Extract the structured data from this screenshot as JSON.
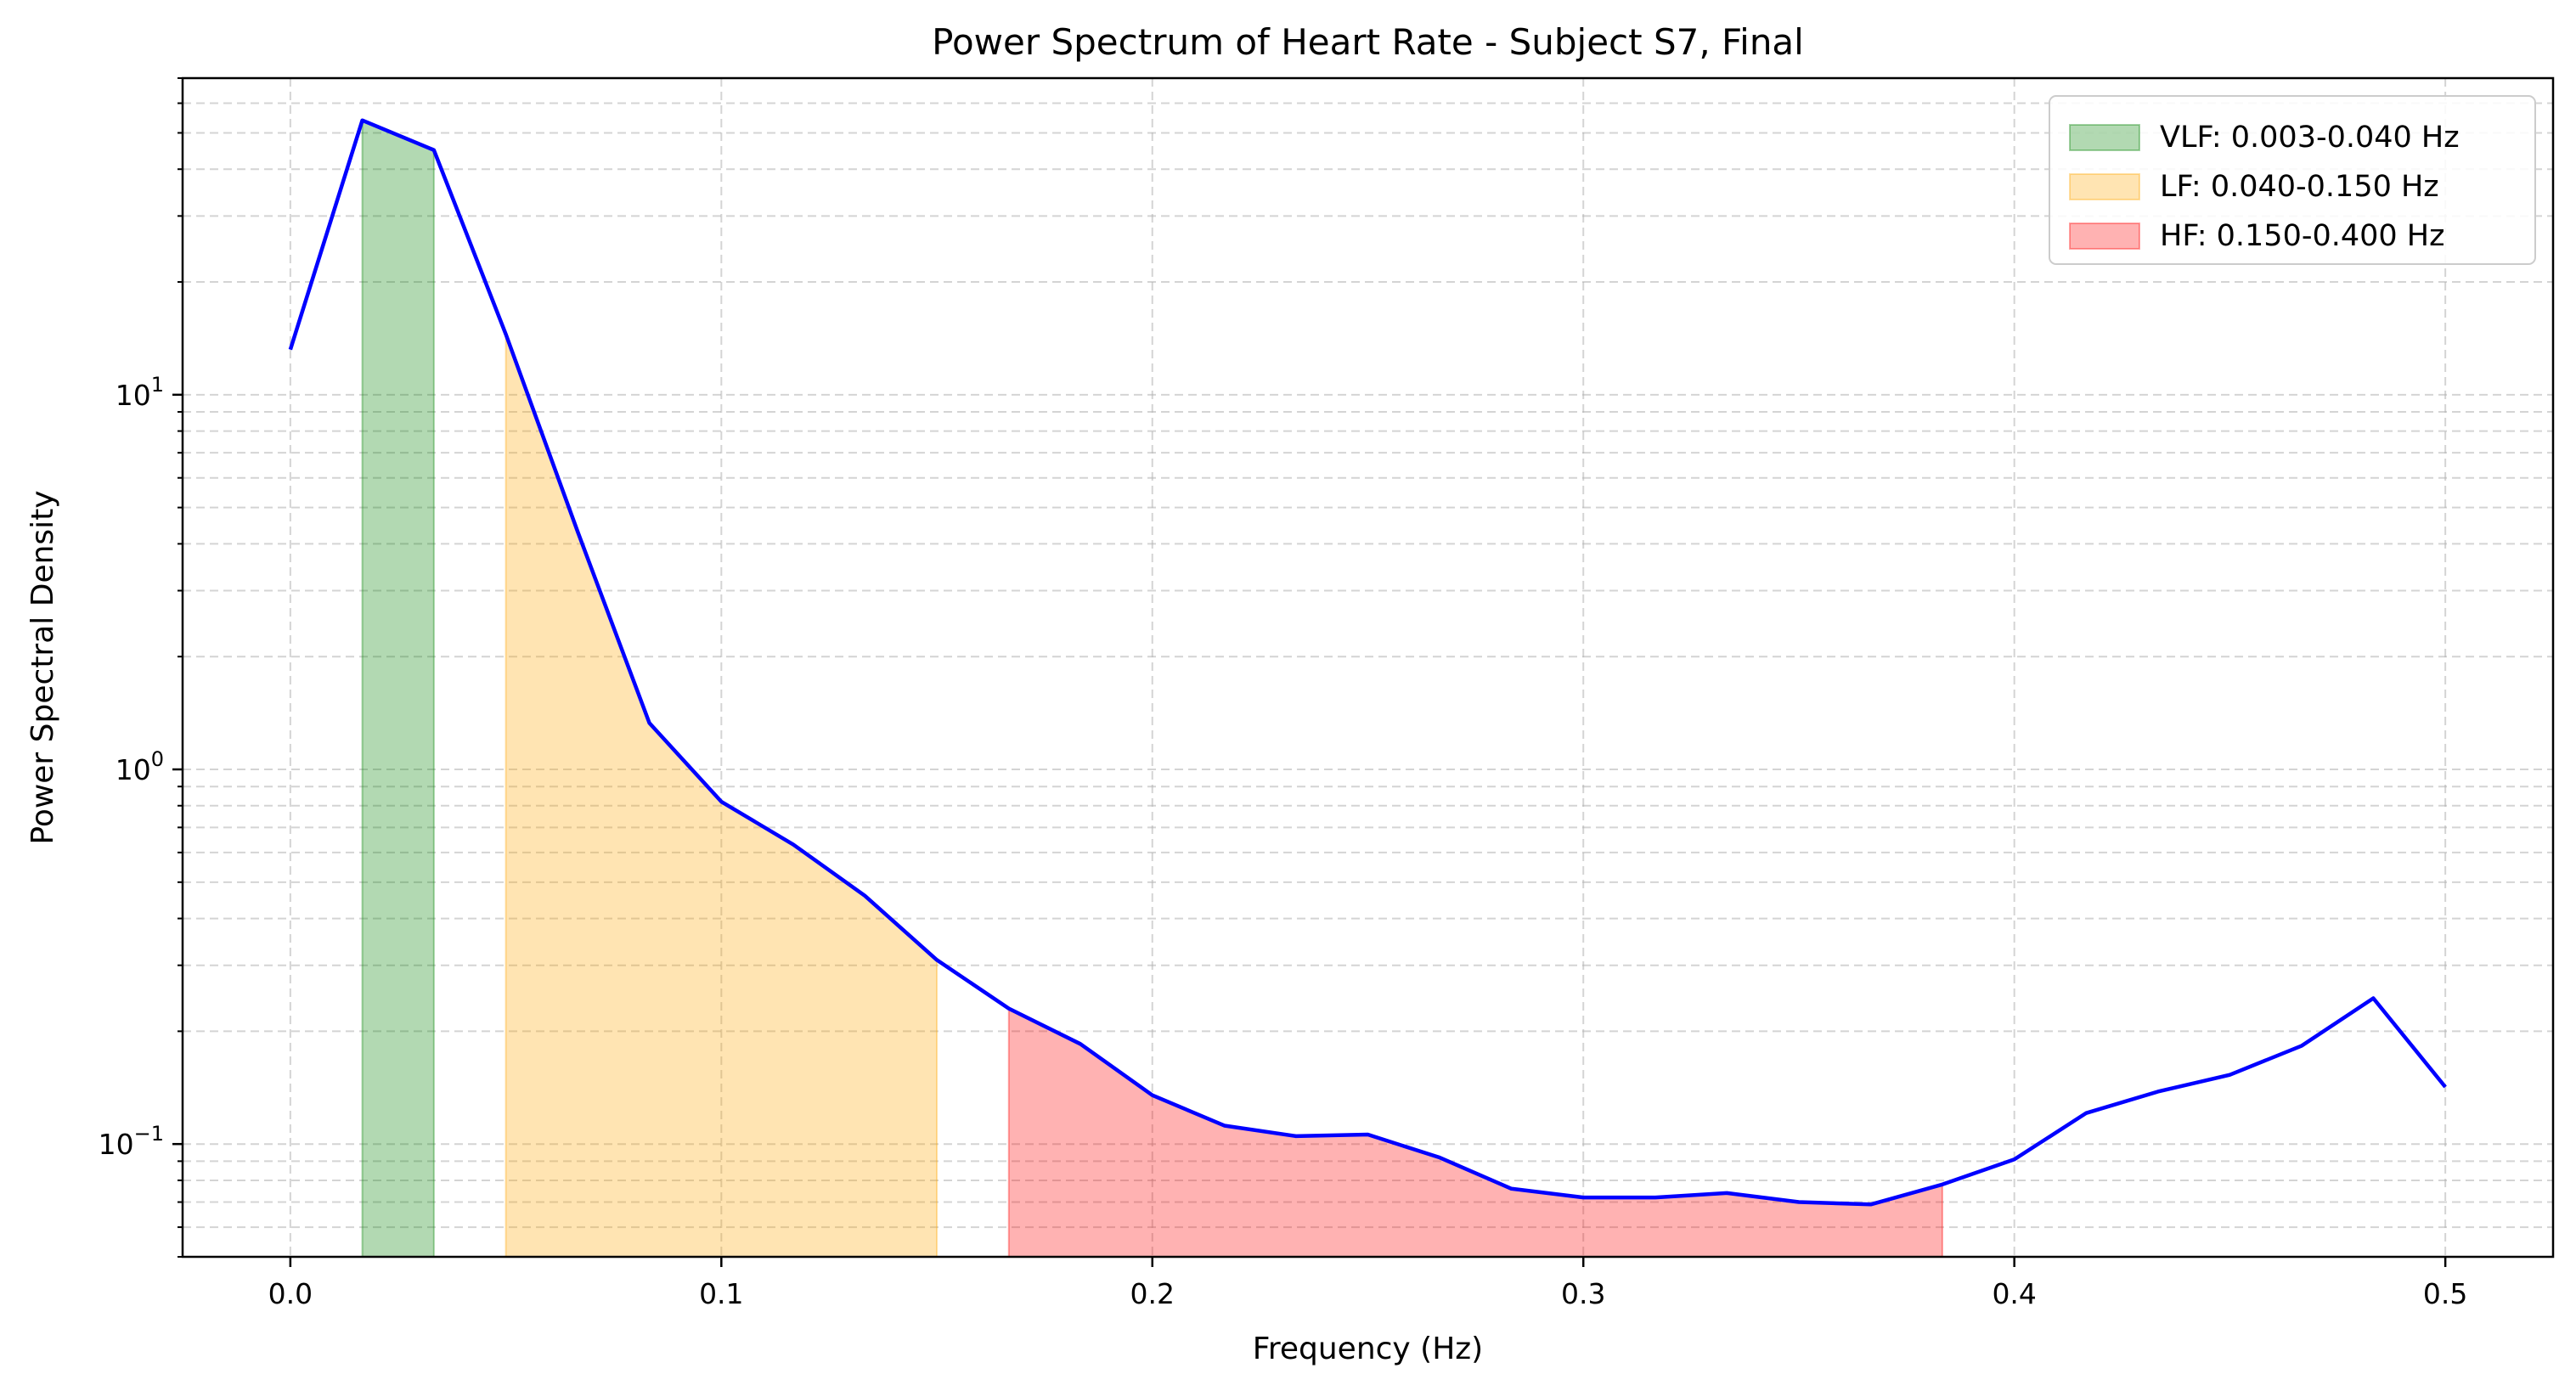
{
  "chart_data": {
    "type": "line",
    "title": "Power Spectrum of Heart Rate - Subject S7, Final",
    "xlabel": "Frequency (Hz)",
    "ylabel": "Power Spectral Density",
    "xlim": [
      -0.025,
      0.525
    ],
    "ylim": [
      0.05,
      70
    ],
    "yscale": "log",
    "grid": true,
    "legend_position": "top-right",
    "x_ticks": [
      0.0,
      0.1,
      0.2,
      0.3,
      0.4,
      0.5
    ],
    "x_tick_labels": [
      "0.0",
      "0.1",
      "0.2",
      "0.3",
      "0.4",
      "0.5"
    ],
    "y_ticks": [
      {
        "value": 0.1,
        "base": "10",
        "exp": "−1"
      },
      {
        "value": 1,
        "base": "10",
        "exp": "0"
      },
      {
        "value": 10,
        "base": "10",
        "exp": "1"
      }
    ],
    "series": [
      {
        "color": "#0000ff",
        "x": [
          0.0,
          0.0167,
          0.0333,
          0.05,
          0.0667,
          0.0833,
          0.1,
          0.1167,
          0.1333,
          0.15,
          0.1667,
          0.1833,
          0.2,
          0.2167,
          0.2333,
          0.25,
          0.2667,
          0.2833,
          0.3,
          0.3167,
          0.3333,
          0.35,
          0.3667,
          0.3833,
          0.4,
          0.4167,
          0.4333,
          0.45,
          0.4667,
          0.4833,
          0.5
        ],
        "y": [
          13.2,
          54.0,
          45.0,
          14.5,
          4.3,
          1.33,
          0.82,
          0.63,
          0.46,
          0.31,
          0.23,
          0.185,
          0.135,
          0.112,
          0.105,
          0.106,
          0.092,
          0.076,
          0.072,
          0.072,
          0.074,
          0.07,
          0.069,
          0.078,
          0.091,
          0.121,
          0.138,
          0.153,
          0.183,
          0.245,
          0.142
        ]
      }
    ],
    "bands": [
      {
        "name": "VLF: 0.003-0.040 Hz",
        "color": "#008000",
        "alpha": 0.3,
        "x_start": 0.0167,
        "x_end": 0.0333
      },
      {
        "name": "LF: 0.040-0.150 Hz",
        "color": "#ffa500",
        "alpha": 0.3,
        "x_start": 0.05,
        "x_end": 0.15
      },
      {
        "name": "HF: 0.150-0.400 Hz",
        "color": "#ff0000",
        "alpha": 0.3,
        "x_start": 0.1667,
        "x_end": 0.3833
      }
    ]
  }
}
